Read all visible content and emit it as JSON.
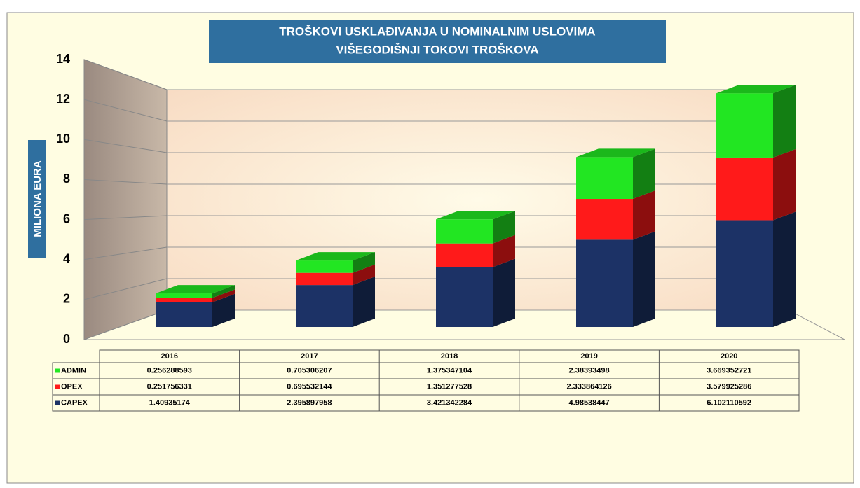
{
  "chart_data": {
    "type": "bar3d_stacked",
    "title_lines": [
      "TROŠKOVI USKLAĐIVANJA U NOMINALNIM USLOVIMA",
      "VIŠEGODIŠNJI TOKOVI TROŠKOVA"
    ],
    "y_label": "MILIONA EURA",
    "categories": [
      "2016",
      "2017",
      "2018",
      "2019",
      "2020"
    ],
    "series": [
      {
        "name": "ADMIN",
        "color": "#22e622",
        "values": [
          0.256288593,
          0.705306207,
          1.375347104,
          2.38393498,
          3.669352721
        ]
      },
      {
        "name": "OPEX",
        "color": "#ff1a1a",
        "values": [
          0.251756331,
          0.695532144,
          1.351277528,
          2.333864126,
          3.579925286
        ]
      },
      {
        "name": "CAPEX",
        "color": "#1c3266",
        "values": [
          1.40935174,
          2.395897958,
          3.421342284,
          4.98538447,
          6.102110592
        ]
      }
    ],
    "ylim": [
      0,
      14
    ],
    "yticks": [
      0,
      2,
      4,
      6,
      8,
      10,
      12,
      14
    ],
    "grid": true
  }
}
